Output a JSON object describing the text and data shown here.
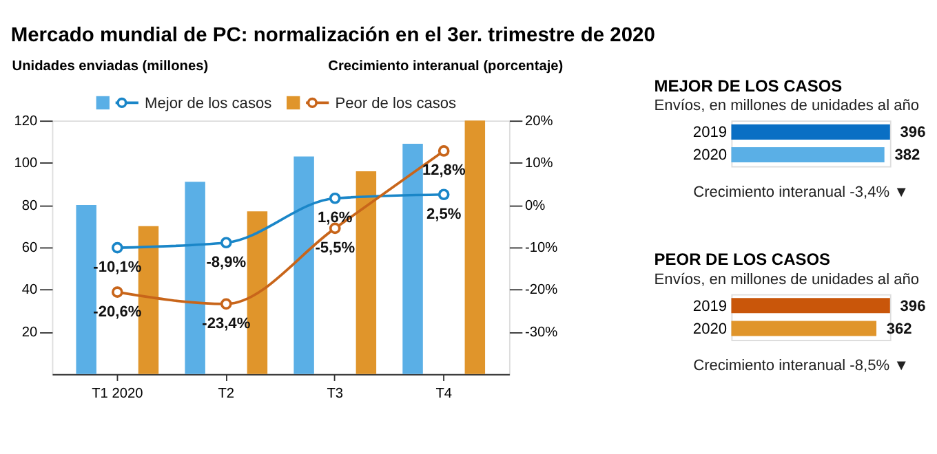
{
  "chart_data": [
    {
      "type": "bar",
      "title": "Mercado mundial de PC: normalización en el 3er. trimestre de 2020",
      "ylabel": "Unidades enviadas (millones)",
      "y2label": "Crecimiento interanual (porcentaje)",
      "categories": [
        "T1 2020",
        "T2",
        "T3",
        "T4"
      ],
      "series": [
        {
          "type": "bar",
          "color": "#5aafe6",
          "values": [
            80,
            91,
            103,
            109
          ]
        },
        {
          "type": "bar",
          "color": "#e0952b",
          "values": [
            70,
            77,
            96,
            120
          ]
        },
        {
          "name": "Mejor de los casos",
          "type": "line",
          "axis": "y2",
          "color": "#1a86c8",
          "values": [
            -10.1,
            -8.9,
            1.6,
            2.5
          ],
          "value_labels": [
            "-10,1%",
            "-8,9%",
            "1,6%",
            "2,5%"
          ]
        },
        {
          "name": "Peor de los casos",
          "type": "line",
          "axis": "y2",
          "color": "#c8651a",
          "values": [
            -20.6,
            -23.4,
            -5.5,
            12.8
          ],
          "value_labels": [
            "-20,6%",
            "-23,4%",
            "-5,5%",
            "12,8%"
          ]
        }
      ],
      "ylim": [
        0,
        120
      ],
      "yticks": [
        20,
        40,
        60,
        80,
        100,
        120
      ],
      "y2lim": [
        -40,
        20
      ],
      "y2ticks": [
        {
          "value": -30,
          "label": "-30%"
        },
        {
          "value": -20,
          "label": "-20%"
        },
        {
          "value": -10,
          "label": "-10%"
        },
        {
          "value": 0,
          "label": "0%"
        },
        {
          "value": 10,
          "label": "10%"
        },
        {
          "value": 20,
          "label": "20%"
        }
      ],
      "marker": "circle",
      "legend": "top"
    },
    {
      "type": "bar",
      "orientation": "horizontal",
      "title": "MEJOR DE LOS CASOS",
      "subtitle": "Envíos, en millones de unidades al año",
      "categories": [
        "2019",
        "2020"
      ],
      "values": [
        396,
        382
      ],
      "colors": [
        "#0a6fc4",
        "#5aafe6"
      ],
      "data_labels": true,
      "annotations": [
        "Crecimiento interanual -3,4% ▼"
      ]
    },
    {
      "type": "bar",
      "orientation": "horizontal",
      "title": "PEOR DE LOS CASOS",
      "subtitle": "Envíos, en millones de unidades al año",
      "categories": [
        "2019",
        "2020"
      ],
      "values": [
        396,
        362
      ],
      "colors": [
        "#c9560a",
        "#e0952b"
      ],
      "data_labels": true,
      "annotations": [
        "Crecimiento interanual -8,5% ▼"
      ]
    }
  ]
}
